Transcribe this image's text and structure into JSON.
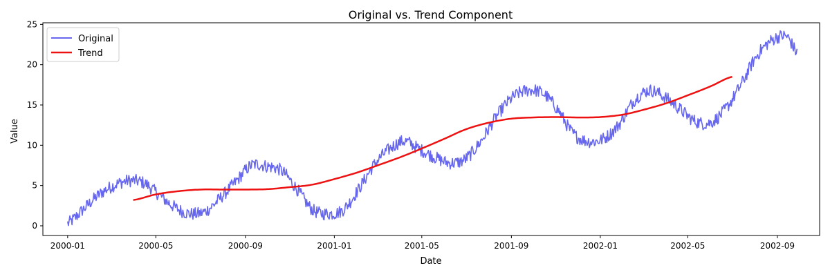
{
  "chart_data": {
    "type": "line",
    "title": "Original vs. Trend Component",
    "xlabel": "Date",
    "ylabel": "Value",
    "xlim": [
      "1999-11-28",
      "2002-10-29"
    ],
    "ylim": [
      -1.2,
      25.2
    ],
    "grid": false,
    "legend_position": "top-left",
    "x_ticks": [
      "2000-01",
      "2000-05",
      "2000-09",
      "2001-01",
      "2001-05",
      "2001-09",
      "2002-01",
      "2002-05",
      "2002-09"
    ],
    "y_ticks": [
      0,
      5,
      10,
      15,
      20,
      25
    ],
    "series": [
      {
        "name": "Original",
        "color": "#6666ee",
        "style": "noisy",
        "x": [
          "2000-01-01",
          "2000-01-22",
          "2000-02-12",
          "2000-03-04",
          "2000-03-25",
          "2000-04-15",
          "2000-05-06",
          "2000-05-27",
          "2000-06-17",
          "2000-07-08",
          "2000-07-29",
          "2000-08-19",
          "2000-09-09",
          "2000-09-30",
          "2000-10-21",
          "2000-11-11",
          "2000-12-02",
          "2000-12-23",
          "2001-01-13",
          "2001-02-03",
          "2001-02-24",
          "2001-03-17",
          "2001-04-07",
          "2001-04-28",
          "2001-05-19",
          "2001-06-09",
          "2001-06-30",
          "2001-07-21",
          "2001-08-11",
          "2001-09-01",
          "2001-09-22",
          "2001-10-13",
          "2001-11-03",
          "2001-11-24",
          "2001-12-15",
          "2002-01-05",
          "2002-01-26",
          "2002-02-16",
          "2002-03-09",
          "2002-03-30",
          "2002-04-20",
          "2002-05-11",
          "2002-06-01",
          "2002-06-22",
          "2002-07-13",
          "2002-08-03",
          "2002-08-24",
          "2002-09-14",
          "2002-09-28"
        ],
        "values": [
          0.3,
          2.0,
          3.8,
          5.0,
          5.6,
          5.3,
          3.8,
          2.3,
          1.5,
          1.8,
          3.5,
          5.5,
          7.5,
          7.4,
          6.8,
          4.5,
          2.0,
          1.5,
          2.0,
          4.5,
          7.5,
          9.5,
          10.5,
          9.5,
          8.5,
          7.8,
          8.3,
          10.5,
          13.5,
          15.8,
          16.8,
          16.5,
          14.5,
          11.5,
          10.5,
          10.8,
          12.5,
          15.5,
          16.8,
          16.0,
          14.5,
          13.0,
          12.8,
          14.5,
          17.5,
          21.0,
          23.0,
          23.5,
          21.5
        ]
      },
      {
        "name": "Trend",
        "color": "#ee1111",
        "style": "smooth",
        "x": [
          "2000-03-31",
          "2000-05-01",
          "2000-06-01",
          "2000-07-01",
          "2000-08-01",
          "2000-09-01",
          "2000-10-01",
          "2000-11-01",
          "2000-12-01",
          "2001-01-01",
          "2001-02-01",
          "2001-03-01",
          "2001-04-01",
          "2001-05-01",
          "2001-06-01",
          "2001-07-01",
          "2001-08-01",
          "2001-09-01",
          "2001-10-01",
          "2001-11-01",
          "2001-12-01",
          "2002-01-01",
          "2002-02-01",
          "2002-03-01",
          "2002-04-01",
          "2002-05-01",
          "2002-06-01",
          "2002-07-01"
        ],
        "values": [
          3.2,
          3.9,
          4.3,
          4.5,
          4.5,
          4.5,
          4.55,
          4.8,
          5.1,
          5.8,
          6.6,
          7.5,
          8.5,
          9.6,
          10.8,
          12.0,
          12.8,
          13.3,
          13.45,
          13.5,
          13.45,
          13.5,
          13.8,
          14.4,
          15.2,
          16.2,
          17.3,
          18.5
        ]
      }
    ]
  }
}
